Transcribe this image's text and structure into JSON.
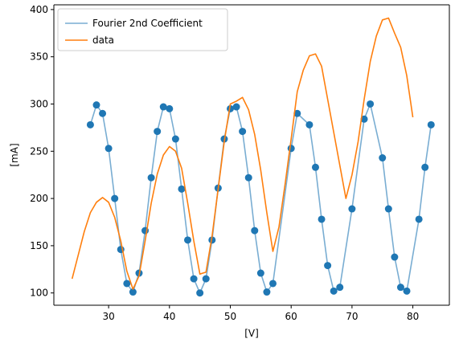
{
  "chart_data": {
    "type": "line",
    "title": "",
    "xlabel": "[V]",
    "ylabel": "[mA]",
    "xlim": [
      21,
      86
    ],
    "ylim": [
      87,
      405
    ],
    "xticks": [
      30,
      40,
      50,
      60,
      70,
      80
    ],
    "yticks": [
      100,
      150,
      200,
      250,
      300,
      350,
      400
    ],
    "grid": false,
    "legend": "top-left",
    "series": [
      {
        "name": "Fourier 2nd Coefficient",
        "color": "#1f77b4",
        "line_alpha": 0.6,
        "markers": true,
        "x": [
          27,
          28,
          29,
          30,
          31,
          32,
          33,
          34,
          35,
          36,
          37,
          38,
          39,
          40,
          41,
          42,
          43,
          44,
          45,
          46,
          47,
          48,
          49,
          50,
          51,
          52,
          53,
          54,
          55,
          56,
          57,
          60,
          61,
          63,
          64,
          65,
          66,
          67,
          68,
          70,
          72,
          73,
          75,
          76,
          77,
          78,
          79,
          81,
          82,
          83
        ],
        "y": [
          278,
          299,
          290,
          253,
          200,
          146,
          110,
          101,
          121,
          166,
          222,
          271,
          297,
          295,
          263,
          210,
          156,
          115,
          100,
          115,
          156,
          211,
          263,
          295,
          297,
          271,
          222,
          166,
          121,
          101,
          110,
          253,
          290,
          278,
          233,
          178,
          129,
          102,
          106,
          189,
          284,
          300,
          243,
          189,
          138,
          106,
          102,
          178,
          233,
          278
        ]
      },
      {
        "name": "data",
        "color": "#ff7f0e",
        "markers": false,
        "x": [
          24,
          25,
          26,
          27,
          28,
          29,
          30,
          31,
          32,
          33,
          34,
          35,
          36,
          37,
          38,
          39,
          40,
          41,
          42,
          43,
          44,
          45,
          46,
          47,
          48,
          49,
          50,
          51,
          52,
          53,
          54,
          55,
          56,
          57,
          58,
          59,
          60,
          61,
          62,
          63,
          64,
          65,
          66,
          67,
          68,
          69,
          70,
          71,
          72,
          73,
          74,
          75,
          76,
          77,
          78,
          79,
          80
        ],
        "y": [
          115,
          140,
          165,
          185,
          196,
          201,
          196,
          180,
          155,
          123,
          104,
          118,
          155,
          195,
          226,
          246,
          255,
          250,
          232,
          195,
          155,
          120,
          122,
          160,
          210,
          260,
          300,
          303,
          307,
          294,
          268,
          230,
          185,
          144,
          170,
          215,
          263,
          313,
          336,
          351,
          353,
          340,
          305,
          270,
          235,
          200,
          225,
          260,
          305,
          345,
          372,
          389,
          391,
          375,
          360,
          330,
          286
        ]
      }
    ]
  }
}
